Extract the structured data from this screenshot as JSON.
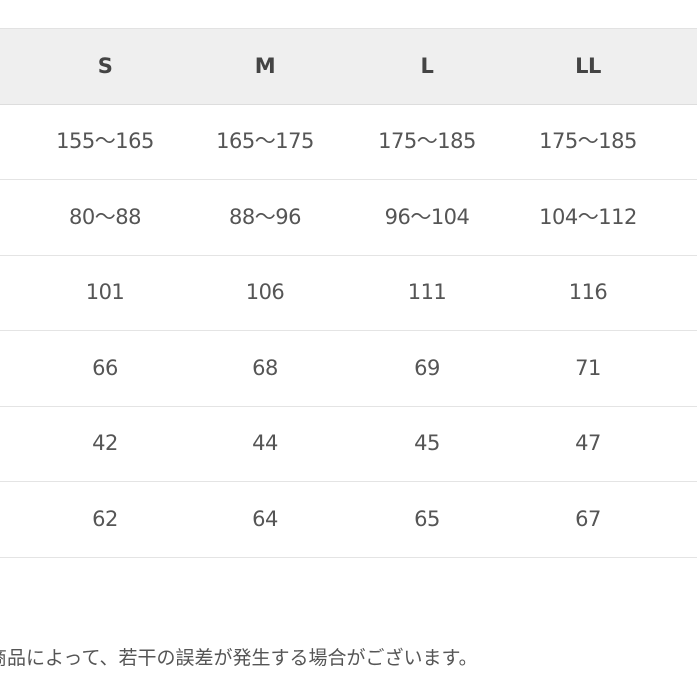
{
  "table": {
    "headers": [
      "S",
      "M",
      "L",
      "LL"
    ],
    "rows": [
      [
        "155〜165",
        "165〜175",
        "175〜185",
        "175〜185"
      ],
      [
        "80〜88",
        "88〜96",
        "96〜104",
        "104〜112"
      ],
      [
        "101",
        "106",
        "111",
        "116"
      ],
      [
        "66",
        "68",
        "69",
        "71"
      ],
      [
        "42",
        "44",
        "45",
        "47"
      ],
      [
        "62",
        "64",
        "65",
        "67"
      ]
    ]
  },
  "note": "商品によって、若干の誤差が発生する場合がございます。"
}
